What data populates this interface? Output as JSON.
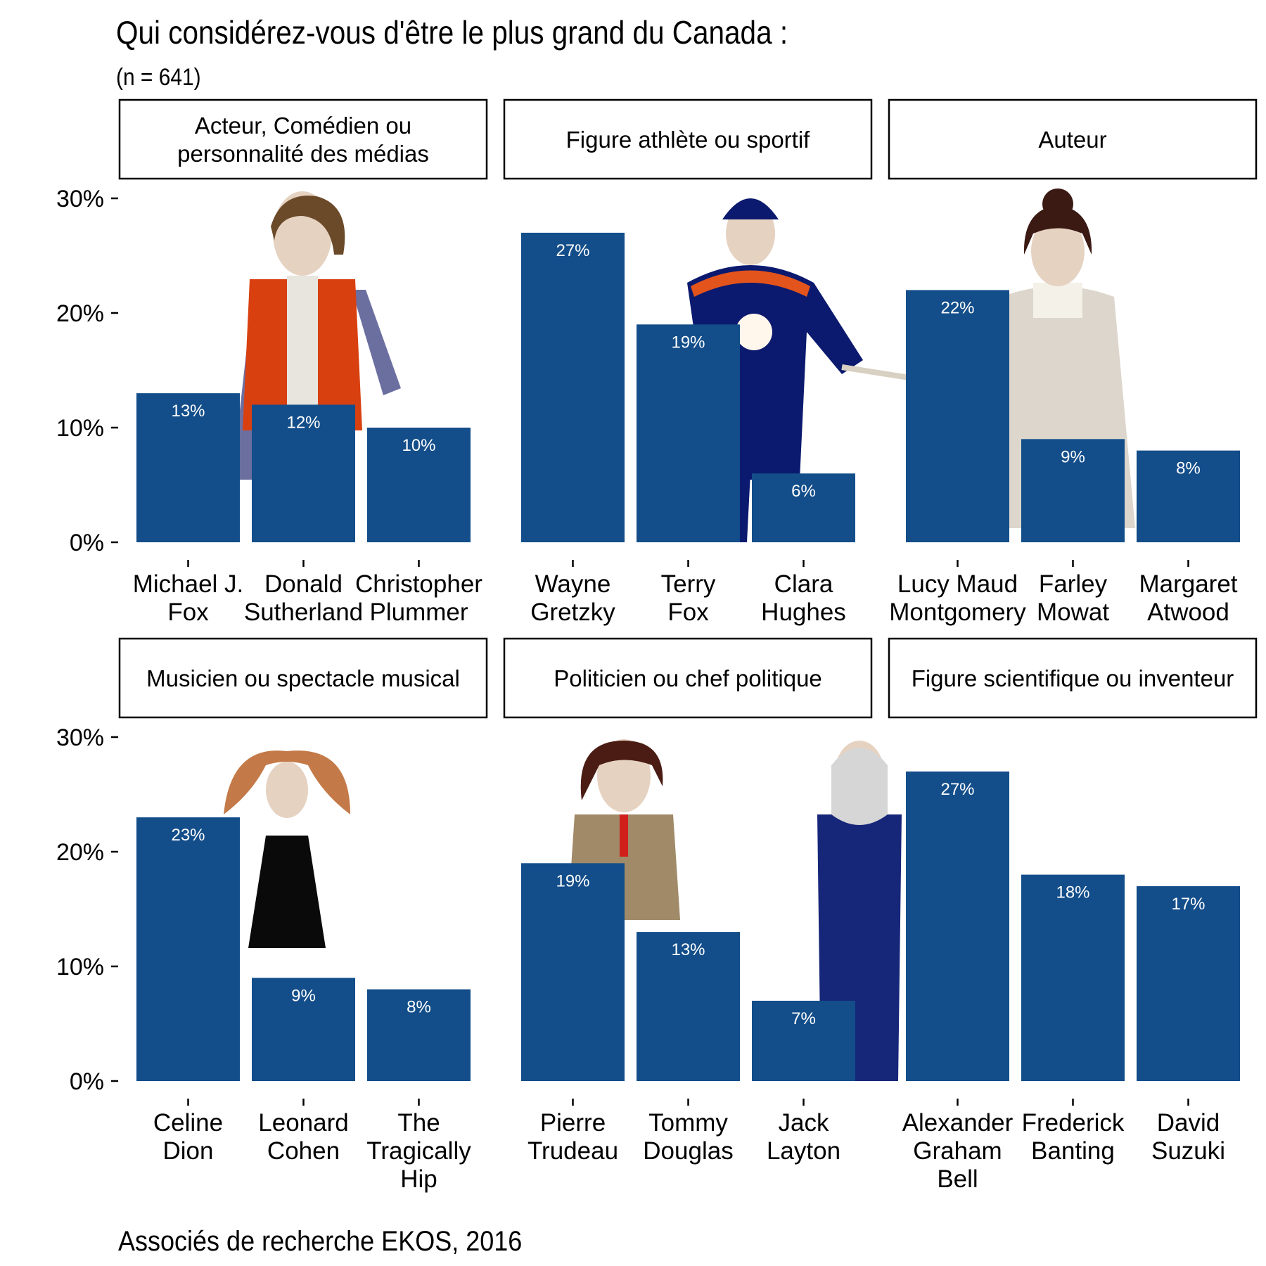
{
  "header": {
    "title": "Qui considérez-vous d'être le plus grand du Canada :",
    "subtitle": "(n = 641)"
  },
  "footer": {
    "caption": "Associés de recherche EKOS, 2016"
  },
  "colors": {
    "bar": "#134e8a",
    "value_label": "#ffffff",
    "strip_border": "#000000",
    "background": "#ffffff"
  },
  "chart_data": {
    "type": "bar",
    "facet_layout": "2 rows x 3 columns",
    "yticks": [
      "0%",
      "10%",
      "20%",
      "30%"
    ],
    "ylim": [
      0,
      30
    ],
    "grid": false,
    "legend": "none",
    "panels": [
      {
        "strip": [
          "Acteur, Comédien ou",
          "personnalité des médias"
        ],
        "illustration": "actor-figure",
        "categories": [
          [
            "Michael J.",
            "Fox"
          ],
          [
            "Donald",
            "Sutherland"
          ],
          [
            "Christopher",
            "Plummer"
          ]
        ],
        "values": [
          13,
          12,
          10
        ],
        "labels": [
          "13%",
          "12%",
          "10%"
        ]
      },
      {
        "strip": [
          "Figure athlète ou sportif"
        ],
        "illustration": "hockey-player-figure",
        "categories": [
          [
            "Wayne",
            "Gretzky"
          ],
          [
            "Terry",
            "Fox"
          ],
          [
            "Clara",
            "Hughes"
          ]
        ],
        "values": [
          27,
          19,
          6
        ],
        "labels": [
          "27%",
          "19%",
          "6%"
        ]
      },
      {
        "strip": [
          "Auteur"
        ],
        "illustration": "author-figure",
        "categories": [
          [
            "Lucy Maud",
            "Montgomery"
          ],
          [
            "Farley",
            "Mowat"
          ],
          [
            "Margaret",
            "Atwood"
          ]
        ],
        "values": [
          22,
          9,
          8
        ],
        "labels": [
          "22%",
          "9%",
          "8%"
        ]
      },
      {
        "strip": [
          "Musicien ou spectacle musical"
        ],
        "illustration": "singer-figure",
        "categories": [
          [
            "Celine",
            "Dion"
          ],
          [
            "Leonard",
            "Cohen"
          ],
          [
            "The",
            "Tragically",
            "Hip"
          ]
        ],
        "values": [
          23,
          9,
          8
        ],
        "labels": [
          "23%",
          "9%",
          "8%"
        ]
      },
      {
        "strip": [
          "Politicien ou chef politique"
        ],
        "illustration": "politician-figure",
        "categories": [
          [
            "Pierre",
            "Trudeau"
          ],
          [
            "Tommy",
            "Douglas"
          ],
          [
            "Jack",
            "Layton"
          ]
        ],
        "values": [
          19,
          13,
          7
        ],
        "labels": [
          "19%",
          "13%",
          "7%"
        ]
      },
      {
        "strip": [
          "Figure scientifique ou inventeur"
        ],
        "illustration": "scientist-figure",
        "categories": [
          [
            "Alexander",
            "Graham",
            "Bell"
          ],
          [
            "Frederick",
            "Banting"
          ],
          [
            "David",
            "Suzuki"
          ]
        ],
        "values": [
          27,
          18,
          17
        ],
        "labels": [
          "27%",
          "18%",
          "17%"
        ]
      }
    ]
  }
}
